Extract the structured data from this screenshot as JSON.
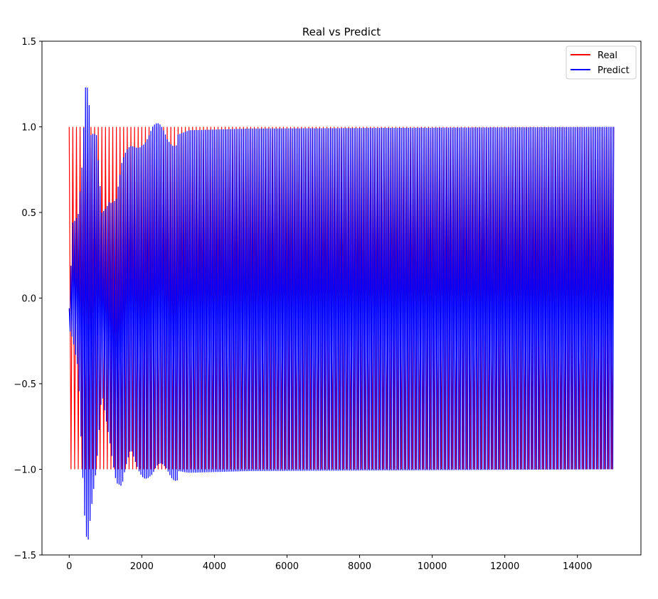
{
  "chart_data": {
    "type": "line",
    "title": "Real vs Predict",
    "xlabel": "",
    "ylabel": "",
    "xlim": [
      -750,
      15750
    ],
    "ylim": [
      -1.5,
      1.5
    ],
    "xticks": [
      0,
      2000,
      4000,
      6000,
      8000,
      10000,
      12000,
      14000
    ],
    "yticks": [
      1.5,
      1.0,
      0.5,
      0.0,
      -0.5,
      -1.0,
      -1.5
    ],
    "ytick_labels": [
      "1.5",
      "1.0",
      "0.5",
      "0.0",
      "−0.5",
      "−1.0",
      "−1.5"
    ],
    "grid": false,
    "legend": {
      "position": "top-right",
      "entries": [
        "Real",
        "Predict"
      ]
    },
    "series": [
      {
        "name": "Real",
        "color": "#ff0000",
        "x_range": [
          0,
          15000
        ],
        "description_values": {
          "min": -1.0,
          "max": 1.0
        },
        "values": "oscillating square-like signal between -1.0 and 1.0 over x 0 to 15000"
      },
      {
        "name": "Predict",
        "color": "#0000ff",
        "x_range": [
          0,
          15000
        ],
        "envelope": [
          {
            "x": 0,
            "min": -0.18,
            "max": -0.06
          },
          {
            "x": 100,
            "min": -0.2,
            "max": 0.48
          },
          {
            "x": 250,
            "min": -0.35,
            "max": 0.55
          },
          {
            "x": 350,
            "min": -0.9,
            "max": 0.8
          },
          {
            "x": 450,
            "min": -1.38,
            "max": 1.23
          },
          {
            "x": 520,
            "min": -1.45,
            "max": 1.2
          },
          {
            "x": 600,
            "min": -1.3,
            "max": 0.9
          },
          {
            "x": 750,
            "min": -1.05,
            "max": 0.9
          },
          {
            "x": 900,
            "min": -0.55,
            "max": 0.5
          },
          {
            "x": 1100,
            "min": -0.75,
            "max": 0.62
          },
          {
            "x": 1300,
            "min": -1.06,
            "max": 0.6
          },
          {
            "x": 1450,
            "min": -1.14,
            "max": 0.75
          },
          {
            "x": 1700,
            "min": -0.92,
            "max": 0.85
          },
          {
            "x": 2000,
            "min": -0.98,
            "max": 0.95
          },
          {
            "x": 2300,
            "min": -1.05,
            "max": 0.98
          },
          {
            "x": 2700,
            "min": -1.0,
            "max": 0.93
          },
          {
            "x": 3300,
            "min": -1.02,
            "max": 0.98
          },
          {
            "x": 5000,
            "min": -1.01,
            "max": 0.99
          },
          {
            "x": 15000,
            "min": -1.0,
            "max": 1.0
          }
        ]
      }
    ]
  }
}
